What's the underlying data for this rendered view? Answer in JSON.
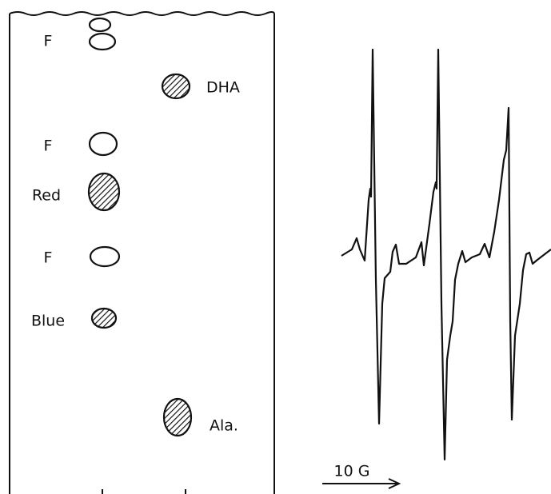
{
  "chromatogram": {
    "labels": [
      "F",
      "DHA",
      "F",
      "Red",
      "F",
      "Blue",
      "Ala."
    ]
  },
  "spectrum": {
    "scale_label": "10 G"
  }
}
